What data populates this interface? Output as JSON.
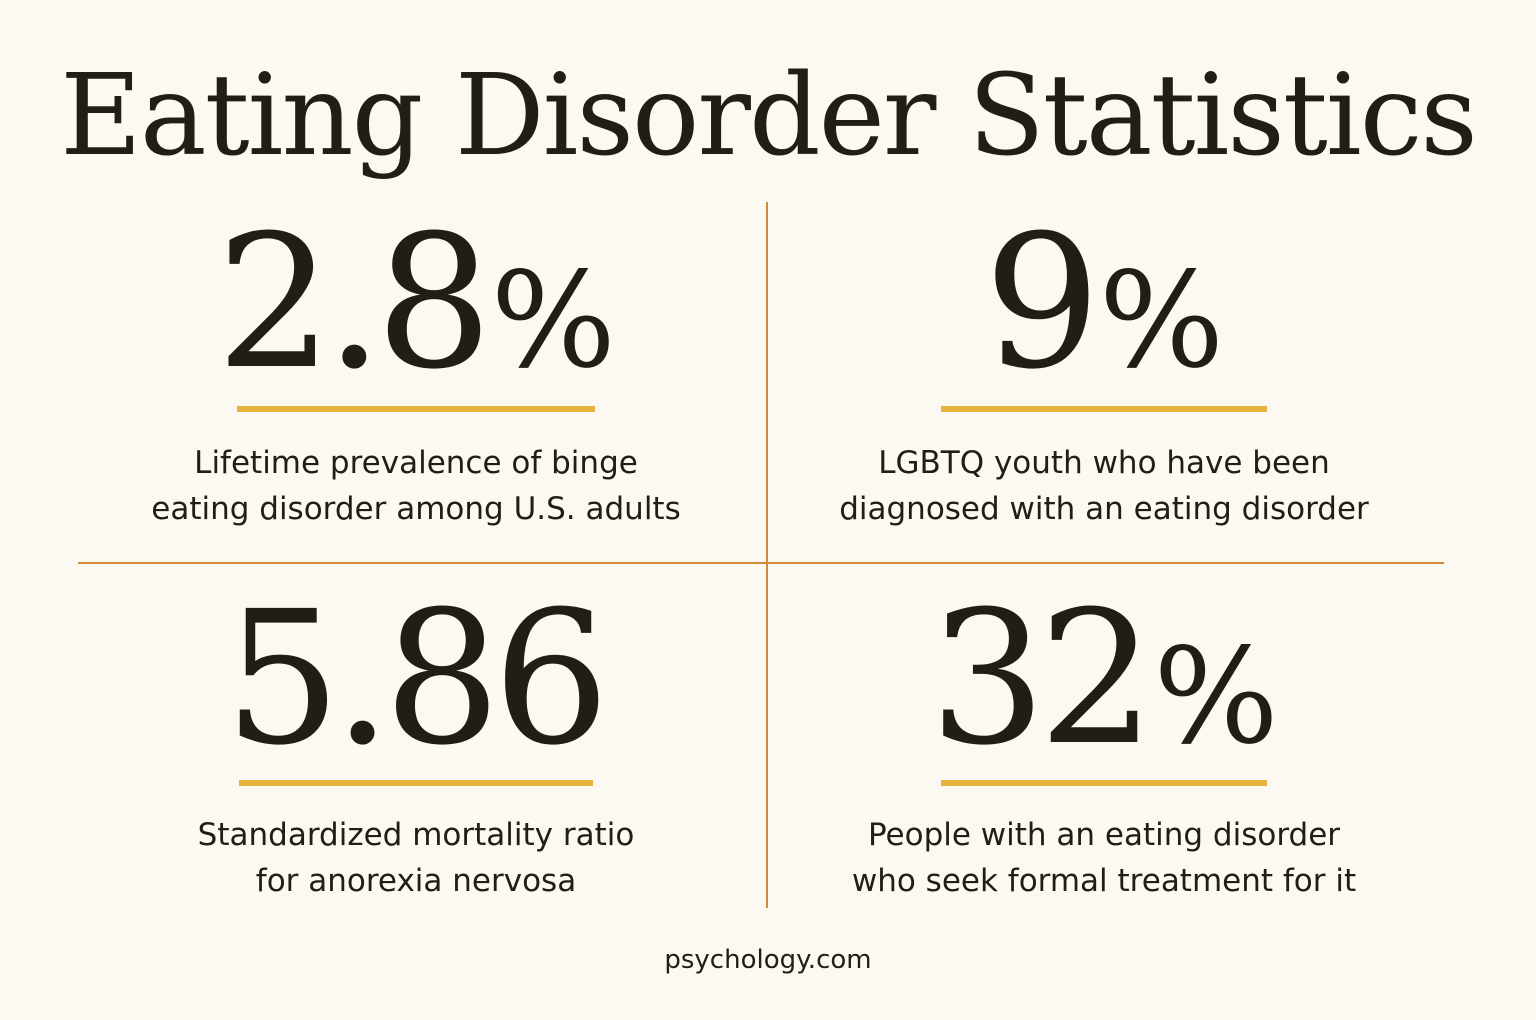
{
  "title": "Eating Disorder Statistics",
  "stats": [
    {
      "value": "2.8",
      "unit": "%",
      "label_lines": [
        "Lifetime prevalence of binge",
        "eating disorder among U.S. adults"
      ]
    },
    {
      "value": "9",
      "unit": "%",
      "label_lines": [
        "LGBTQ youth who have been",
        "diagnosed with an eating disorder"
      ]
    },
    {
      "value": "5.86",
      "unit": "",
      "label_lines": [
        "Standardized mortality ratio",
        "for anorexia nervosa"
      ]
    },
    {
      "value": "32",
      "unit": "%",
      "label_lines": [
        "People with an eating disorder",
        "who seek formal treatment for it"
      ]
    }
  ],
  "source": "psychology.com",
  "colors": {
    "background": "#fcf9f2",
    "text": "#231d18",
    "divider": "#d18a3a",
    "underline": "#e6b33b"
  }
}
